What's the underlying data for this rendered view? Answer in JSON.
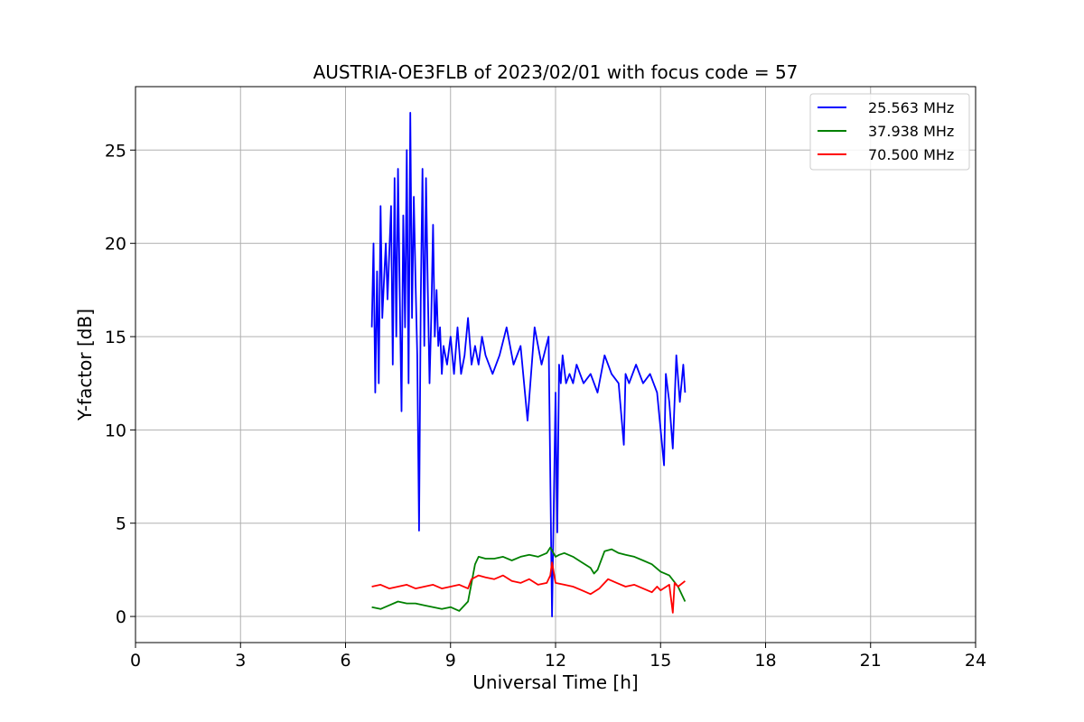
{
  "chart_data": {
    "type": "line",
    "title": "AUSTRIA-OE3FLB of 2023/02/01 with focus code = 57",
    "xlabel": "Universal Time [h]",
    "ylabel": "Y-factor [dB]",
    "xlim": [
      0,
      24
    ],
    "ylim": [
      -1.4,
      28.4
    ],
    "xticks": [
      "0",
      "3",
      "6",
      "9",
      "12",
      "15",
      "18",
      "21",
      "24"
    ],
    "yticks": [
      "0",
      "5",
      "10",
      "15",
      "20",
      "25"
    ],
    "grid": true,
    "legend_position": "top-right",
    "series": [
      {
        "name": "25.563 MHz",
        "color": "#0000ff",
        "x": [
          6.75,
          6.8,
          6.85,
          6.9,
          6.95,
          7.0,
          7.05,
          7.1,
          7.15,
          7.2,
          7.3,
          7.35,
          7.4,
          7.45,
          7.5,
          7.55,
          7.6,
          7.65,
          7.7,
          7.75,
          7.8,
          7.85,
          7.9,
          7.95,
          8.0,
          8.05,
          8.1,
          8.15,
          8.2,
          8.25,
          8.3,
          8.35,
          8.4,
          8.45,
          8.5,
          8.55,
          8.6,
          8.65,
          8.7,
          8.75,
          8.8,
          8.9,
          9.0,
          9.1,
          9.2,
          9.3,
          9.4,
          9.5,
          9.6,
          9.7,
          9.8,
          9.9,
          10.0,
          10.2,
          10.4,
          10.6,
          10.8,
          11.0,
          11.2,
          11.4,
          11.6,
          11.8,
          11.9,
          12.0,
          12.05,
          12.1,
          12.15,
          12.2,
          12.3,
          12.4,
          12.5,
          12.6,
          12.8,
          13.0,
          13.2,
          13.4,
          13.6,
          13.8,
          13.95,
          14.0,
          14.1,
          14.3,
          14.5,
          14.7,
          14.9,
          15.1,
          15.15,
          15.25,
          15.35,
          15.45,
          15.55,
          15.65,
          15.7
        ],
        "y": [
          15.5,
          20.0,
          12.0,
          18.5,
          12.5,
          22.0,
          16.0,
          18.0,
          20.0,
          17.0,
          22.0,
          13.5,
          23.5,
          15.0,
          24.0,
          17.0,
          11.0,
          21.5,
          15.5,
          25.0,
          12.5,
          27.0,
          16.0,
          22.5,
          18.0,
          14.0,
          4.6,
          17.0,
          24.0,
          14.5,
          23.5,
          17.5,
          12.5,
          16.0,
          21.0,
          15.0,
          17.5,
          14.5,
          15.5,
          13.0,
          14.5,
          13.5,
          15.0,
          13.0,
          15.5,
          13.0,
          14.0,
          16.0,
          13.5,
          14.5,
          13.5,
          15.0,
          14.0,
          13.0,
          14.0,
          15.5,
          13.5,
          14.5,
          10.5,
          15.5,
          13.5,
          15.0,
          0.0,
          12.0,
          4.5,
          13.5,
          12.5,
          14.0,
          12.5,
          13.0,
          12.5,
          13.5,
          12.5,
          13.0,
          12.0,
          14.0,
          13.0,
          12.5,
          9.2,
          13.0,
          12.5,
          13.5,
          12.5,
          13.0,
          12.0,
          8.1,
          13.0,
          11.5,
          9.0,
          14.0,
          11.5,
          13.5,
          12.0
        ]
      },
      {
        "name": "37.938 MHz",
        "color": "#008000",
        "x": [
          6.75,
          7.0,
          7.25,
          7.5,
          7.75,
          8.0,
          8.25,
          8.5,
          8.75,
          9.0,
          9.25,
          9.5,
          9.6,
          9.7,
          9.8,
          10.0,
          10.25,
          10.5,
          10.75,
          11.0,
          11.25,
          11.5,
          11.75,
          11.85,
          12.0,
          12.1,
          12.25,
          12.5,
          12.75,
          13.0,
          13.1,
          13.2,
          13.4,
          13.6,
          13.8,
          14.0,
          14.25,
          14.5,
          14.75,
          15.0,
          15.25,
          15.5,
          15.7
        ],
        "y": [
          0.5,
          0.4,
          0.6,
          0.8,
          0.7,
          0.7,
          0.6,
          0.5,
          0.4,
          0.5,
          0.3,
          0.8,
          1.8,
          2.8,
          3.2,
          3.1,
          3.1,
          3.2,
          3.0,
          3.2,
          3.3,
          3.2,
          3.4,
          3.7,
          3.2,
          3.3,
          3.4,
          3.2,
          2.9,
          2.6,
          2.3,
          2.5,
          3.5,
          3.6,
          3.4,
          3.3,
          3.2,
          3.0,
          2.8,
          2.4,
          2.2,
          1.6,
          0.8
        ]
      },
      {
        "name": "70.500 MHz",
        "color": "#ff0000",
        "x": [
          6.75,
          7.0,
          7.25,
          7.5,
          7.75,
          8.0,
          8.25,
          8.5,
          8.75,
          9.0,
          9.25,
          9.5,
          9.6,
          9.7,
          9.8,
          10.0,
          10.25,
          10.5,
          10.75,
          11.0,
          11.25,
          11.5,
          11.75,
          11.85,
          11.9,
          12.0,
          12.25,
          12.5,
          12.75,
          13.0,
          13.25,
          13.5,
          13.75,
          14.0,
          14.25,
          14.5,
          14.75,
          14.9,
          15.0,
          15.25,
          15.35,
          15.4,
          15.5,
          15.7
        ],
        "y": [
          1.6,
          1.7,
          1.5,
          1.6,
          1.7,
          1.5,
          1.6,
          1.7,
          1.5,
          1.6,
          1.7,
          1.5,
          2.0,
          2.1,
          2.2,
          2.1,
          2.0,
          2.2,
          1.9,
          1.8,
          2.0,
          1.7,
          1.8,
          2.2,
          2.9,
          1.8,
          1.7,
          1.6,
          1.4,
          1.2,
          1.5,
          2.0,
          1.8,
          1.6,
          1.7,
          1.5,
          1.3,
          1.6,
          1.4,
          1.7,
          0.2,
          1.8,
          1.6,
          1.9
        ]
      }
    ]
  }
}
